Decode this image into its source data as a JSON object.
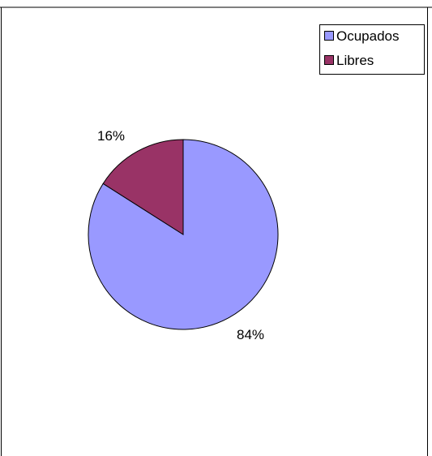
{
  "chart_data": {
    "type": "pie",
    "title": "",
    "categories": [
      "Ocupados",
      "Libres"
    ],
    "values": [
      84,
      16
    ],
    "data_labels": [
      "84%",
      "16%"
    ],
    "colors": [
      "#9999FF",
      "#993366"
    ],
    "start_angle_deg": 0,
    "direction": "clockwise",
    "legend": {
      "placement": "top-right",
      "entries": [
        "Ocupados",
        "Libres"
      ]
    }
  }
}
